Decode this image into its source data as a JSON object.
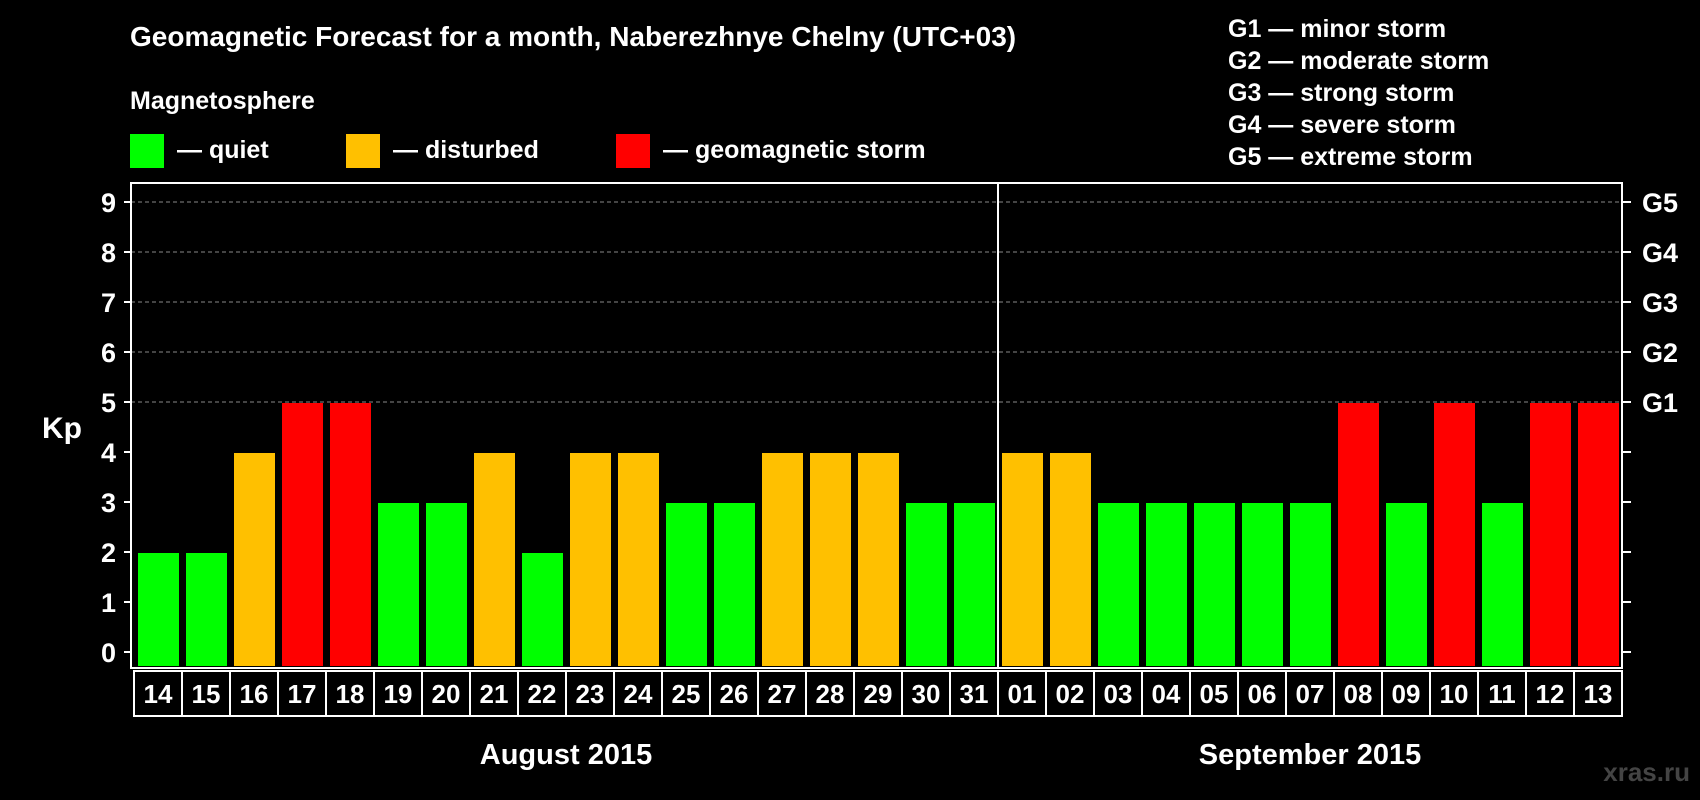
{
  "chart_data": {
    "type": "bar",
    "title": "Geomagnetic Forecast for a month, Naberezhnye Chelny (UTC+03)",
    "ylabel": "Kp",
    "ylim": [
      0,
      9
    ],
    "y_ticks": [
      "0",
      "1",
      "2",
      "3",
      "4",
      "5",
      "6",
      "7",
      "8",
      "9"
    ],
    "right_ticks": [
      {
        "kp": 5,
        "label": "G1"
      },
      {
        "kp": 6,
        "label": "G2"
      },
      {
        "kp": 7,
        "label": "G3"
      },
      {
        "kp": 8,
        "label": "G4"
      },
      {
        "kp": 9,
        "label": "G5"
      }
    ],
    "grid": true,
    "categories": [
      "14",
      "15",
      "16",
      "17",
      "18",
      "19",
      "20",
      "21",
      "22",
      "23",
      "24",
      "25",
      "26",
      "27",
      "28",
      "29",
      "30",
      "31",
      "01",
      "02",
      "03",
      "04",
      "05",
      "06",
      "07",
      "08",
      "09",
      "10",
      "11",
      "12",
      "13"
    ],
    "values": [
      2,
      2,
      4,
      5,
      5,
      3,
      3,
      4,
      2,
      4,
      4,
      3,
      3,
      4,
      4,
      4,
      3,
      3,
      4,
      4,
      3,
      3,
      3,
      3,
      3,
      5,
      3,
      5,
      3,
      5,
      5
    ],
    "months": [
      {
        "label": "August 2015",
        "count": 18
      },
      {
        "label": "September 2015",
        "count": 13
      }
    ],
    "legend_title": "Magnetosphere",
    "legend": [
      {
        "label": "— quiet",
        "color": "#00ff00"
      },
      {
        "label": "— disturbed",
        "color": "#ffc000"
      },
      {
        "label": "— geomagnetic storm",
        "color": "#ff0000"
      }
    ],
    "storm_scale": [
      "G1 — minor storm",
      "G2 — moderate storm",
      "G3 — strong storm",
      "G4 — severe storm",
      "G5 — extreme storm"
    ]
  },
  "watermark": "xras.ru",
  "colors": {
    "quiet": "#00ff00",
    "disturbed": "#ffc000",
    "storm": "#ff0000",
    "grid": "#888888",
    "frame": "#ffffff"
  }
}
